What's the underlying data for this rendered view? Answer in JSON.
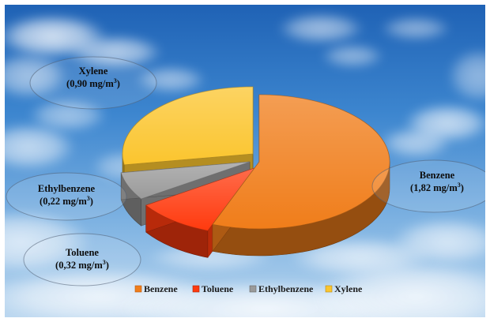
{
  "chart_data": {
    "type": "pie",
    "categories": [
      "Benzene",
      "Toluene",
      "Ethylbenzene",
      "Xylene"
    ],
    "values": [
      1.82,
      0.32,
      0.22,
      0.9
    ],
    "unit": "mg/m3",
    "data_labels": [
      {
        "name": "Benzene",
        "value": "(1,82 mg/m",
        "sup": "3",
        "close": ")"
      },
      {
        "name": "Toluene",
        "value": "(0,32 mg/m",
        "sup": "3",
        "close": ")"
      },
      {
        "name": "Ethylbenzene",
        "value": "(0,22 mg/m",
        "sup": "3",
        "close": ")"
      },
      {
        "name": "Xylene",
        "value": "(0,90 mg/m",
        "sup": "3",
        "close": ")"
      }
    ],
    "colors": [
      "#f07d1a",
      "#ff3a0e",
      "#9a9a9a",
      "#fbc52e"
    ],
    "legend_position": "bottom",
    "style": "3d-exploded",
    "background": "sky-with-clouds"
  }
}
